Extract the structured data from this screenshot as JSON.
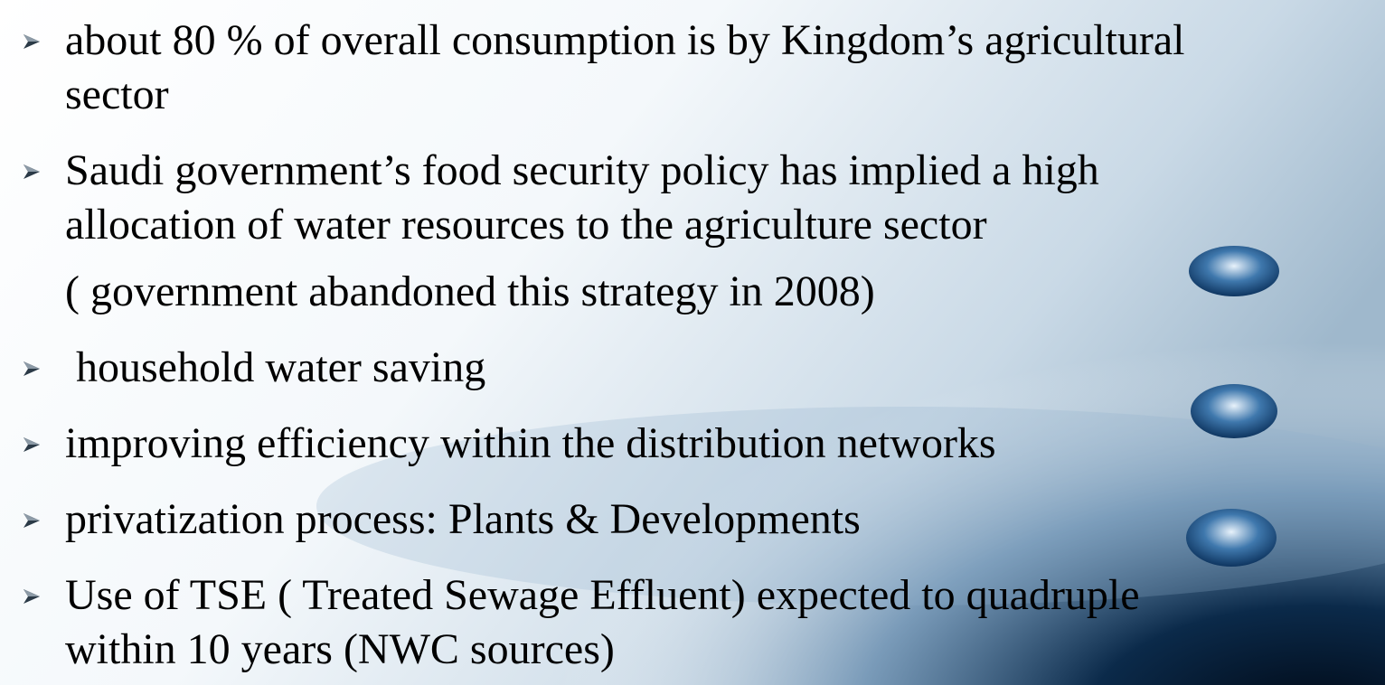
{
  "items": [
    {
      "lines": [
        "about 80 % of overall consumption is by Kingdom’s agricultural",
        "sector"
      ]
    },
    {
      "lines": [
        "Saudi government’s food security policy has implied a high",
        "allocation of water resources to the agriculture sector"
      ],
      "note": "( government abandoned this strategy in 2008)"
    },
    {
      "lines": [
        " household water saving"
      ]
    },
    {
      "lines": [
        "improving efficiency within the distribution networks"
      ]
    },
    {
      "lines": [
        "privatization process: Plants & Developments"
      ]
    },
    {
      "lines": [
        "Use of TSE ( Treated Sewage Effluent) expected to quadruple",
        "within 10 years (NWC sources)"
      ]
    }
  ]
}
